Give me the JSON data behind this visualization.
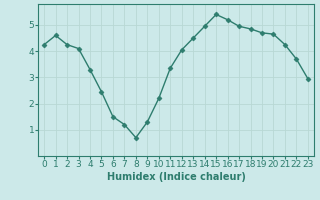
{
  "x": [
    0,
    1,
    2,
    3,
    4,
    5,
    6,
    7,
    8,
    9,
    10,
    11,
    12,
    13,
    14,
    15,
    16,
    17,
    18,
    19,
    20,
    21,
    22,
    23
  ],
  "y": [
    4.25,
    4.6,
    4.25,
    4.1,
    3.3,
    2.45,
    1.5,
    1.2,
    0.7,
    1.3,
    2.2,
    3.35,
    4.05,
    4.5,
    4.95,
    5.4,
    5.2,
    4.95,
    4.85,
    4.7,
    4.65,
    4.25,
    3.7,
    2.95
  ],
  "line_color": "#2e7d6e",
  "marker": "D",
  "marker_size": 2.5,
  "background_color": "#cce9e9",
  "grid_color": "#b8d8d4",
  "xlabel": "Humidex (Indice chaleur)",
  "xlim": [
    -0.5,
    23.5
  ],
  "ylim": [
    0,
    5.8
  ],
  "yticks": [
    1,
    2,
    3,
    4,
    5
  ],
  "xtick_labels": [
    "0",
    "1",
    "2",
    "3",
    "4",
    "5",
    "6",
    "7",
    "8",
    "9",
    "10",
    "11",
    "12",
    "13",
    "14",
    "15",
    "16",
    "17",
    "18",
    "19",
    "20",
    "21",
    "22",
    "23"
  ],
  "tick_color": "#2e7d6e",
  "label_color": "#2e7d6e",
  "xlabel_fontsize": 7,
  "tick_fontsize": 6.5,
  "line_width": 1.0
}
